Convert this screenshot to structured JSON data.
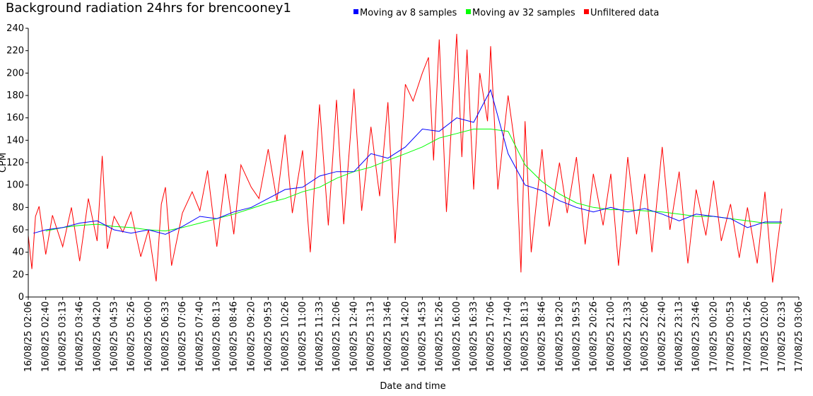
{
  "chart_data": {
    "type": "line",
    "title": "Background radiation 24hrs for brencooney1",
    "xlabel": "Date and time",
    "ylabel": "CPM",
    "ylim": [
      0,
      240
    ],
    "yticks": [
      0,
      20,
      40,
      60,
      80,
      100,
      120,
      140,
      160,
      180,
      200,
      220,
      240
    ],
    "grid": false,
    "legend_position": "top",
    "xlim": [
      "16/08/25 02:06",
      "17/08/25 03:06"
    ],
    "xticks": [
      "16/08/25 02:06",
      "16/08/25 02:40",
      "16/08/25 03:13",
      "16/08/25 03:46",
      "16/08/25 04:20",
      "16/08/25 04:53",
      "16/08/25 05:26",
      "16/08/25 06:00",
      "16/08/25 06:33",
      "16/08/25 07:06",
      "16/08/25 07:40",
      "16/08/25 08:13",
      "16/08/25 08:46",
      "16/08/25 09:20",
      "16/08/25 09:53",
      "16/08/25 10:26",
      "16/08/25 11:00",
      "16/08/25 11:33",
      "16/08/25 12:06",
      "16/08/25 12:40",
      "16/08/25 13:13",
      "16/08/25 13:46",
      "16/08/25 14:20",
      "16/08/25 14:53",
      "16/08/25 15:26",
      "16/08/25 16:00",
      "16/08/25 16:33",
      "16/08/25 17:06",
      "16/08/25 17:40",
      "16/08/25 18:13",
      "16/08/25 18:46",
      "16/08/25 19:20",
      "16/08/25 19:53",
      "16/08/25 20:26",
      "16/08/25 21:00",
      "16/08/25 21:33",
      "16/08/25 22:06",
      "16/08/25 22:40",
      "16/08/25 23:13",
      "16/08/25 23:46",
      "17/08/25 00:20",
      "17/08/25 00:53",
      "17/08/25 01:26",
      "17/08/25 02:00",
      "17/08/25 02:33",
      "17/08/25 03:06"
    ],
    "series": [
      {
        "name": "Moving av 8 samples",
        "color": "#0000ff",
        "x": [
          "16/08/25 02:16",
          "16/08/25 02:40",
          "16/08/25 03:13",
          "16/08/25 03:46",
          "16/08/25 04:20",
          "16/08/25 04:53",
          "16/08/25 05:26",
          "16/08/25 06:00",
          "16/08/25 06:33",
          "16/08/25 07:06",
          "16/08/25 07:40",
          "16/08/25 08:13",
          "16/08/25 08:46",
          "16/08/25 09:20",
          "16/08/25 09:53",
          "16/08/25 10:26",
          "16/08/25 11:00",
          "16/08/25 11:33",
          "16/08/25 12:06",
          "16/08/25 12:40",
          "16/08/25 13:13",
          "16/08/25 13:46",
          "16/08/25 14:20",
          "16/08/25 14:53",
          "16/08/25 15:26",
          "16/08/25 16:00",
          "16/08/25 16:33",
          "16/08/25 17:06",
          "16/08/25 17:40",
          "16/08/25 18:13",
          "16/08/25 18:46",
          "16/08/25 19:20",
          "16/08/25 19:53",
          "16/08/25 20:26",
          "16/08/25 21:00",
          "16/08/25 21:33",
          "16/08/25 22:06",
          "16/08/25 22:40",
          "16/08/25 23:13",
          "16/08/25 23:46",
          "17/08/25 00:20",
          "17/08/25 00:53",
          "17/08/25 01:26",
          "17/08/25 02:00",
          "17/08/25 02:33"
        ],
        "values": [
          57,
          60,
          62,
          66,
          68,
          60,
          57,
          60,
          56,
          63,
          72,
          70,
          76,
          80,
          88,
          96,
          98,
          108,
          112,
          112,
          128,
          124,
          134,
          150,
          148,
          160,
          156,
          185,
          128,
          100,
          95,
          86,
          80,
          76,
          80,
          76,
          79,
          74,
          68,
          74,
          72,
          70,
          62,
          67,
          67
        ]
      },
      {
        "name": "Moving av 32 samples",
        "color": "#00ff00",
        "x": [
          "16/08/25 02:40",
          "16/08/25 03:13",
          "16/08/25 03:46",
          "16/08/25 04:20",
          "16/08/25 04:53",
          "16/08/25 05:26",
          "16/08/25 06:00",
          "16/08/25 06:33",
          "16/08/25 07:06",
          "16/08/25 07:40",
          "16/08/25 08:13",
          "16/08/25 08:46",
          "16/08/25 09:20",
          "16/08/25 09:53",
          "16/08/25 10:26",
          "16/08/25 11:00",
          "16/08/25 11:33",
          "16/08/25 12:06",
          "16/08/25 12:40",
          "16/08/25 13:13",
          "16/08/25 13:46",
          "16/08/25 14:20",
          "16/08/25 14:53",
          "16/08/25 15:26",
          "16/08/25 16:00",
          "16/08/25 16:33",
          "16/08/25 17:06",
          "16/08/25 17:40",
          "16/08/25 18:13",
          "16/08/25 18:46",
          "16/08/25 19:20",
          "16/08/25 19:53",
          "16/08/25 20:26",
          "16/08/25 21:00",
          "16/08/25 21:33",
          "16/08/25 22:06",
          "16/08/25 22:40",
          "16/08/25 23:13",
          "16/08/25 23:46",
          "17/08/25 00:20",
          "17/08/25 00:53",
          "17/08/25 01:26",
          "17/08/25 02:00",
          "17/08/25 02:33"
        ],
        "values": [
          59,
          62,
          64,
          65,
          63,
          62,
          60,
          59,
          62,
          66,
          70,
          74,
          79,
          84,
          88,
          94,
          98,
          106,
          112,
          116,
          122,
          128,
          134,
          142,
          146,
          150,
          150,
          148,
          118,
          103,
          92,
          84,
          80,
          78,
          78,
          77,
          76,
          74,
          72,
          72,
          70,
          68,
          66,
          66
        ]
      },
      {
        "name": "Unfiltered data",
        "color": "#ff0000",
        "x": [
          "16/08/25 02:06",
          "16/08/25 02:13",
          "16/08/25 02:20",
          "16/08/25 02:27",
          "16/08/25 02:40",
          "16/08/25 02:53",
          "16/08/25 03:13",
          "16/08/25 03:30",
          "16/08/25 03:46",
          "16/08/25 04:03",
          "16/08/25 04:20",
          "16/08/25 04:30",
          "16/08/25 04:40",
          "16/08/25 04:53",
          "16/08/25 05:10",
          "16/08/25 05:26",
          "16/08/25 05:45",
          "16/08/25 06:00",
          "16/08/25 06:15",
          "16/08/25 06:25",
          "16/08/25 06:33",
          "16/08/25 06:45",
          "16/08/25 07:06",
          "16/08/25 07:25",
          "16/08/25 07:40",
          "16/08/25 07:55",
          "16/08/25 08:13",
          "16/08/25 08:30",
          "16/08/25 08:46",
          "16/08/25 09:00",
          "16/08/25 09:20",
          "16/08/25 09:35",
          "16/08/25 09:53",
          "16/08/25 10:10",
          "16/08/25 10:26",
          "16/08/25 10:40",
          "16/08/25 11:00",
          "16/08/25 11:15",
          "16/08/25 11:33",
          "16/08/25 11:50",
          "16/08/25 12:06",
          "16/08/25 12:20",
          "16/08/25 12:40",
          "16/08/25 12:55",
          "16/08/25 13:13",
          "16/08/25 13:30",
          "16/08/25 13:46",
          "16/08/25 14:00",
          "16/08/25 14:20",
          "16/08/25 14:35",
          "16/08/25 14:53",
          "16/08/25 15:05",
          "16/08/25 15:15",
          "16/08/25 15:26",
          "16/08/25 15:40",
          "16/08/25 16:00",
          "16/08/25 16:10",
          "16/08/25 16:20",
          "16/08/25 16:33",
          "16/08/25 16:45",
          "16/08/25 17:00",
          "16/08/25 17:06",
          "16/08/25 17:20",
          "16/08/25 17:40",
          "16/08/25 17:55",
          "16/08/25 18:05",
          "16/08/25 18:13",
          "16/08/25 18:25",
          "16/08/25 18:46",
          "16/08/25 19:00",
          "16/08/25 19:20",
          "16/08/25 19:35",
          "16/08/25 19:53",
          "16/08/25 20:10",
          "16/08/25 20:26",
          "16/08/25 20:45",
          "16/08/25 21:00",
          "16/08/25 21:15",
          "16/08/25 21:33",
          "16/08/25 21:50",
          "16/08/25 22:06",
          "16/08/25 22:20",
          "16/08/25 22:40",
          "16/08/25 22:55",
          "16/08/25 23:13",
          "16/08/25 23:30",
          "16/08/25 23:46",
          "17/08/25 00:05",
          "17/08/25 00:20",
          "17/08/25 00:35",
          "17/08/25 00:53",
          "17/08/25 01:10",
          "17/08/25 01:26",
          "17/08/25 01:45",
          "17/08/25 02:00",
          "17/08/25 02:15",
          "17/08/25 02:33"
        ],
        "values": [
          55,
          25,
          72,
          81,
          38,
          73,
          45,
          80,
          32,
          88,
          50,
          126,
          43,
          72,
          58,
          76,
          36,
          60,
          14,
          83,
          98,
          28,
          75,
          94,
          77,
          113,
          45,
          110,
          56,
          118,
          98,
          88,
          132,
          86,
          145,
          75,
          131,
          40,
          172,
          64,
          176,
          65,
          186,
          77,
          152,
          90,
          174,
          48,
          190,
          175,
          200,
          214,
          122,
          230,
          76,
          235,
          125,
          221,
          96,
          200,
          157,
          224,
          96,
          180,
          130,
          22,
          157,
          40,
          132,
          63,
          120,
          75,
          125,
          47,
          110,
          64,
          110,
          28,
          125,
          56,
          110,
          40,
          134,
          60,
          112,
          30,
          96,
          55,
          104,
          50,
          83,
          35,
          80,
          30,
          94,
          13,
          79
        ]
      }
    ]
  }
}
